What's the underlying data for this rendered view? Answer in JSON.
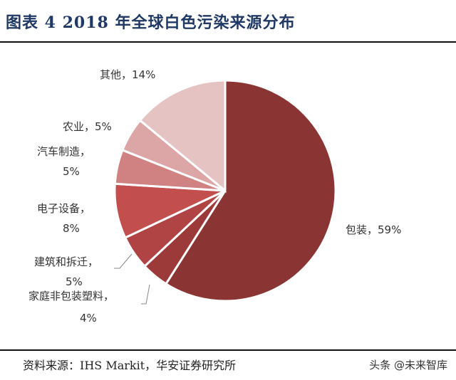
{
  "chart_data": {
    "type": "pie",
    "title": "图表 4 2018 年全球白色污染来源分布",
    "start_angle": "12 o'clock, clockwise",
    "slices": [
      {
        "label": "包装",
        "value": 59,
        "text": "包装，59%",
        "color": "#8A3434"
      },
      {
        "label": "家庭非包装塑料",
        "value": 4,
        "text": "家庭非包装塑料，",
        "pct": "4%",
        "color": "#9C3939"
      },
      {
        "label": "建筑和拆迁",
        "value": 5,
        "text": "建筑和拆迁，",
        "pct": "5%",
        "color": "#B04343"
      },
      {
        "label": "电子设备",
        "value": 8,
        "text": "电子设备，",
        "pct": "8%",
        "color": "#C34E4E"
      },
      {
        "label": "汽车制造",
        "value": 5,
        "text": "汽车制造，",
        "pct": "5%",
        "color": "#D08181"
      },
      {
        "label": "农业",
        "value": 5,
        "text": "农业，5%",
        "color": "#DDA6A6"
      },
      {
        "label": "其他",
        "value": 14,
        "text": "其他，14%",
        "color": "#E6C3C3"
      }
    ],
    "legend": "none"
  },
  "source": "资料来源：IHS Markit，华安证券研究所",
  "watermark": "头条 @未来智库"
}
